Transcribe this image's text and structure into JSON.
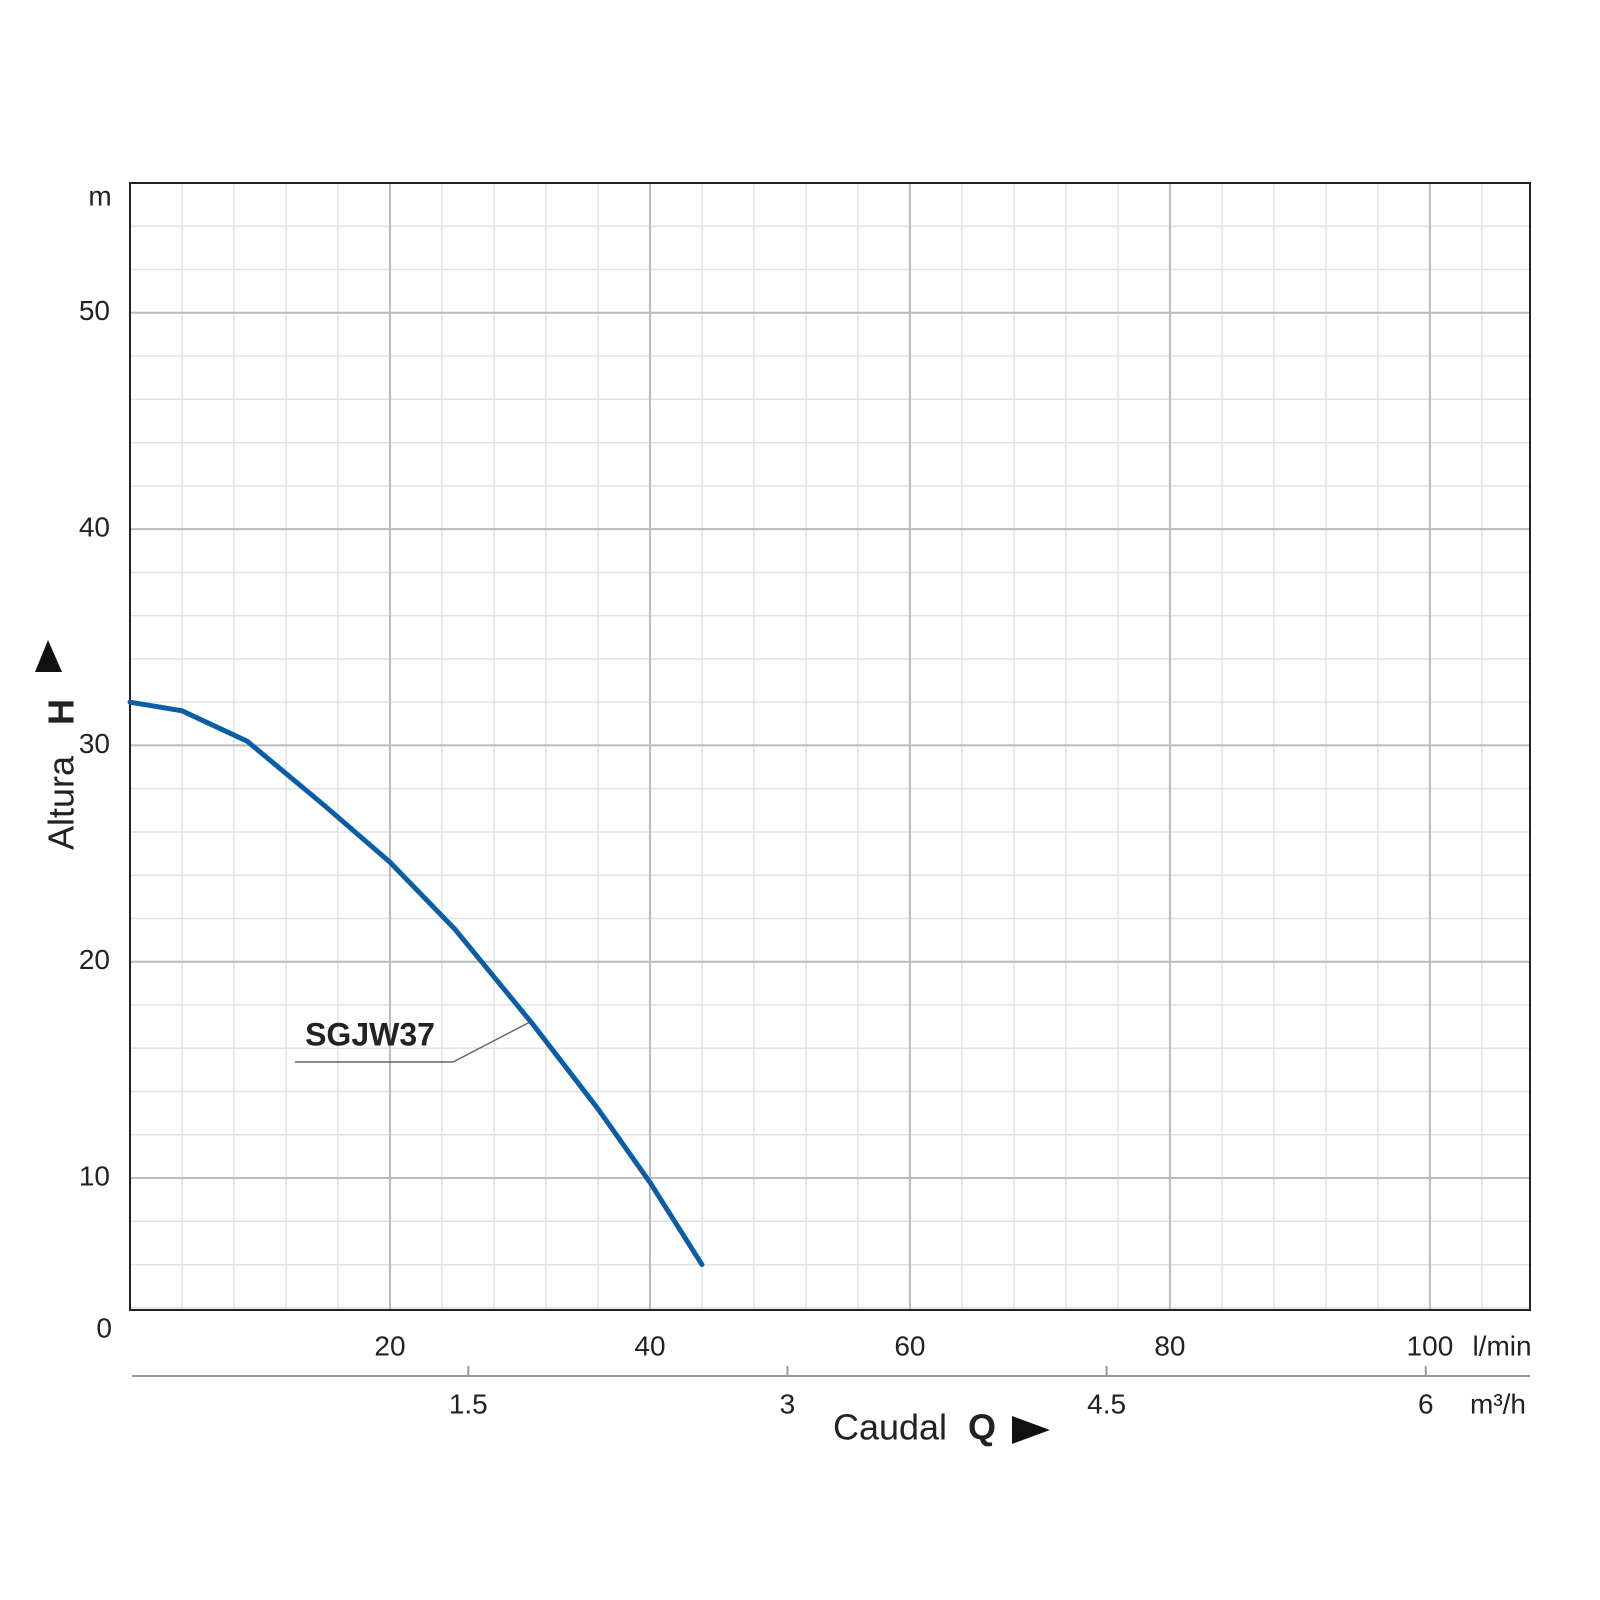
{
  "chart_data": {
    "type": "line",
    "series": [
      {
        "name": "SGJW37",
        "color": "#0a5ea8",
        "x": [
          0,
          4,
          9,
          15,
          20,
          25,
          31,
          36,
          40,
          44
        ],
        "values": [
          32,
          31.6,
          30.2,
          27.2,
          24.6,
          21.5,
          17.1,
          13.2,
          9.8,
          6
        ]
      }
    ],
    "xlim": [
      0,
      107.7
    ],
    "xticks": [
      20,
      40,
      60,
      80,
      100
    ],
    "ylim": [
      3.9,
      56
    ],
    "yticks": [
      10,
      20,
      30,
      40,
      50
    ],
    "x2lim": [
      -0.09,
      6.49
    ],
    "x2ticks": [
      1.5,
      3,
      4.5,
      6
    ],
    "origin_label": "0",
    "y_label": "Altura",
    "y_label_symbol": "H",
    "y_unit": "m",
    "x_label": "Caudal",
    "x_label_symbol": "Q",
    "x_unit": "l/min",
    "x2_unit": "m³/h",
    "grid": true
  }
}
